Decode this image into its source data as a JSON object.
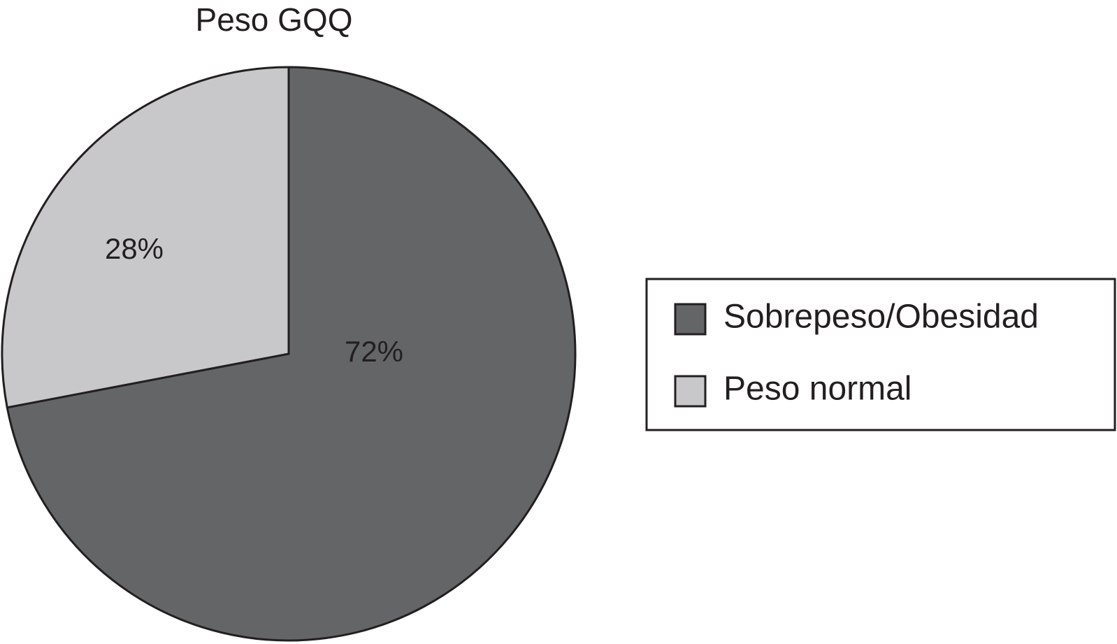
{
  "chart_data": {
    "type": "pie",
    "title": "Peso GQQ",
    "categories": [
      "Sobrepeso/Obesidad",
      "Peso normal"
    ],
    "values": [
      72,
      28
    ],
    "value_labels": [
      "72%",
      "28%"
    ],
    "colors": [
      "#646567",
      "#c8c8ca"
    ],
    "legend": "right"
  }
}
